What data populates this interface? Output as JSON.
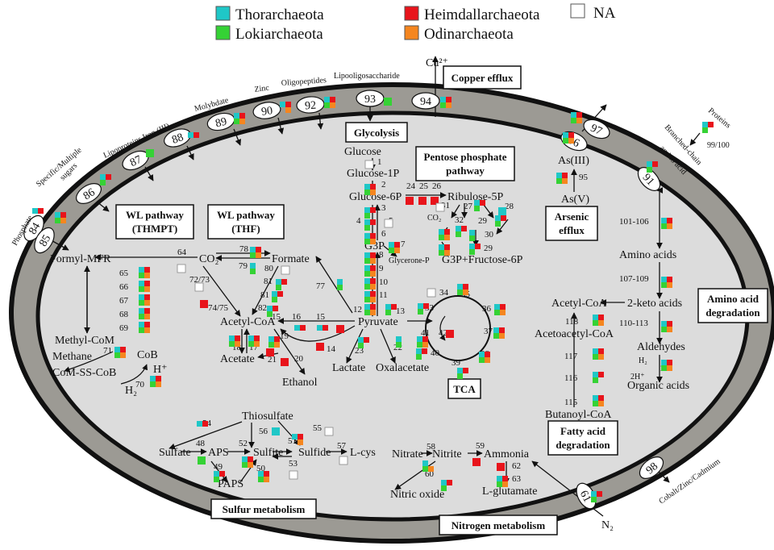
{
  "colors": {
    "Thorarchaeota": "#1fc7c7",
    "Lokiarchaeota": "#35d235",
    "Heimdallarchaeota": "#e8141b",
    "Odinarchaeota": "#f5861f",
    "NA": "#ffffff",
    "cytoplasm": "#dcdcdc",
    "periplasm": "#9c9a94"
  },
  "legend": [
    {
      "label": "Thorarchaeota",
      "color": "#1fc7c7"
    },
    {
      "label": "Lokiarchaeota",
      "color": "#35d235"
    },
    {
      "label": "Heimdallarchaeota",
      "color": "#e8141b"
    },
    {
      "label": "Odinarchaeota",
      "color": "#f5861f"
    },
    {
      "label": "NA",
      "color": "#ffffff"
    }
  ],
  "transporters": [
    "84",
    "85",
    "86",
    "87",
    "88",
    "89",
    "90",
    "92",
    "93",
    "94",
    "97",
    "96",
    "91",
    "98",
    "61"
  ],
  "substrates": {
    "phosphate": "Phosphate",
    "specific": "Specific/Multiple",
    "sugars": "sugars",
    "lipoproteins": "Lipoproteins Iron (III)",
    "molybdate": "Molybdate",
    "zinc": "Zinc",
    "oligopeptides": "Oligopeptides",
    "lipooligo": "Lipooligosaccharide",
    "cu": "Cu²⁺",
    "proteins": "Proteins",
    "p99": "99/100",
    "branched": "Branched-chain",
    "aminoacid": "amino acid",
    "cobalt": "Cobalt/Zinc/Cadmium",
    "n2": "N₂"
  },
  "boxes": {
    "copper": [
      "Copper efflux"
    ],
    "glycolysis": [
      "Glycolysis"
    ],
    "pentose": [
      "Pentose phosphate",
      "pathway"
    ],
    "wl_thmpt": [
      "WL pathway",
      "(THMPT)"
    ],
    "wl_thf": [
      "WL pathway",
      "(THF)"
    ],
    "arsenic": [
      "Arsenic",
      "efflux"
    ],
    "aminodeg": [
      "Amino acid",
      "degradation"
    ],
    "tca": [
      "TCA"
    ],
    "fatty": [
      "Fatty acid",
      "degradation"
    ],
    "sulfur": [
      "Sulfur metabolism"
    ],
    "nitrogen": [
      "Nitrogen metabolism"
    ]
  },
  "metabolites": {
    "glucose": "Glucose",
    "glucose1p": "Glucose-1P",
    "glucose6p": "Glucose-6P",
    "ribulose5p": "Ribulose-5P",
    "g3p": "G3P",
    "glyceroneP": "Glycerone-P",
    "g3pfru": "G3P+Fructose-6P",
    "co_small": "CO₂",
    "pyruvate": "Pyruvate",
    "lactate": "Lactate",
    "oxalacetate": "Oxalacetate",
    "formylmfr": "Formyl-MFR",
    "co2": "CO₂",
    "formate": "Formate",
    "acetylcoa": "Acetyl-CoA",
    "acetate": "Acetate",
    "ethanol": "Ethanol",
    "methylcom": "Methyl-CoM",
    "cob": "CoB",
    "methane": "Methane",
    "comsscob": "CoM-SS-CoB",
    "hplus": "H⁺",
    "h2": "H₂",
    "as3": "As(III)",
    "as5": "As(V)",
    "aminoacids": "Amino acids",
    "ketoacids": "2-keto acids",
    "acetylcoa2": "Acetyl-CoA",
    "acetoacetyl": "Acetoacetyl-CoA",
    "aldehydes": "Aldehydes",
    "h2b": "H₂",
    "twoh": "2H⁺",
    "organic": "Organic acids",
    "butanoyl": "Butanoyl-CoA",
    "thiosulfate": "Thiosulfate",
    "sulfate": "Sulfate",
    "aps": "APS",
    "sulfite": "Sulfite",
    "sulfide": "Sulfide",
    "lcys": "L-cys",
    "paps": "PAPS",
    "nitrate": "Nitrate",
    "nitrite": "Nitrite",
    "ammonia": "Ammonia",
    "nitricoxide": "Nitric oxide",
    "lglutamate": "L-glutamate"
  },
  "reaction_labels": [
    "1",
    "2",
    "3",
    "4",
    "5",
    "6",
    "7",
    "8",
    "9",
    "10",
    "11",
    "12",
    "13",
    "14",
    "15",
    "15",
    "16",
    "17",
    "18",
    "19",
    "20",
    "21",
    "22",
    "23",
    "24",
    "25",
    "26",
    "27",
    "28",
    "29",
    "29",
    "30",
    "31",
    "32",
    "9",
    "8",
    "33",
    "34",
    "35",
    "36",
    "37",
    "38",
    "39",
    "40",
    "41",
    "42",
    "64",
    "65",
    "66",
    "67",
    "68",
    "69",
    "70",
    "71",
    "72/73",
    "74/75",
    "77",
    "78",
    "79",
    "80",
    "81",
    "81",
    "82",
    "95",
    "101-106",
    "107-109",
    "110-113",
    "114",
    "115",
    "116",
    "117",
    "118",
    "48",
    "49",
    "50",
    "51",
    "52",
    "53",
    "54",
    "55",
    "56",
    "57",
    "58",
    "59",
    "60",
    "62",
    "63"
  ],
  "gene_presence": [
    "TH",
    "TLHO",
    "TLH",
    "L",
    "TH",
    "TLHO",
    "THO",
    "TLHO",
    "L",
    "TLHO",
    "TLHO",
    "TLHO",
    "TLH",
    "TLH",
    "N",
    "TLHO",
    "TLH",
    "TLH",
    "N",
    "TLHO",
    "TLHO",
    "TLHO",
    "TLHO",
    "TLHO",
    "TLHO",
    "TLHO",
    "TLH",
    "H",
    "H",
    "H",
    "N",
    "TLH",
    "T",
    "TLH",
    "TLH",
    "TLHO",
    "TLHO",
    "TL",
    "TLH",
    "TLHO",
    "TLHO",
    "TLHO",
    "TLHO",
    "TLHO",
    "TLHO",
    "TLHO",
    "TLH",
    "TLHO",
    "TLH",
    "N",
    "TLHO",
    "TLHO",
    "TLHO",
    "TLHO",
    "TLH",
    "TLH",
    "TLHO",
    "H",
    "N",
    "TLHO",
    "TLHO",
    "TLHO",
    "TLHO",
    "TLHO",
    "TLHO",
    "TLHO",
    "N",
    "H",
    "TL",
    "TLHO",
    "TL",
    "N",
    "TLH",
    "TLH",
    "TLH",
    "TH",
    "TH",
    "H",
    "H",
    "TLHO",
    "TLHO",
    "TLHO",
    "H",
    "H",
    "TLH",
    "TL",
    "TH",
    "N",
    "T",
    "THO",
    "L",
    "TLH",
    "TLHO",
    "TLHO",
    "N",
    "N",
    "TLO",
    "H",
    "TLH",
    "H",
    "TLHO",
    "TLH",
    "T"
  ]
}
